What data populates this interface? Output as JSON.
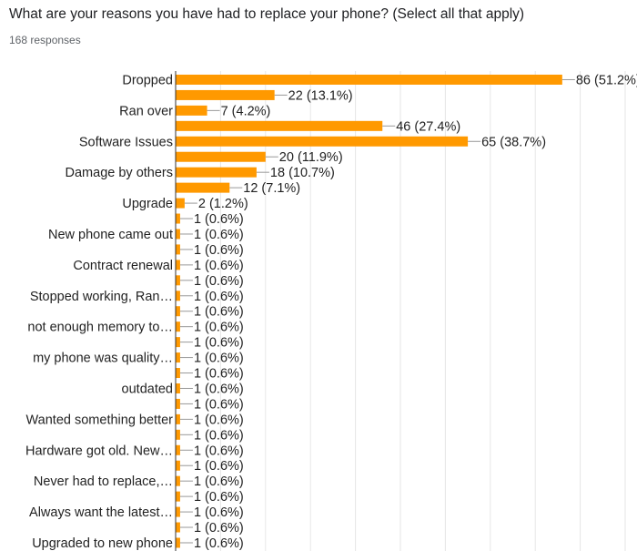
{
  "question": {
    "title": "What are your reasons you have had to replace your phone? (Select all that apply)",
    "responses": "168 responses"
  },
  "colors": {
    "bar": "#ff9900",
    "grid": "#e6e6e6",
    "axis": "#333333",
    "leader": "#999999"
  },
  "chart_data": {
    "type": "bar",
    "orientation": "horizontal",
    "grid": true,
    "categories": [
      "Dropped",
      "",
      "Ran over",
      "",
      "Software Issues",
      "",
      "Damage by others",
      "",
      "Upgrade",
      "",
      "New phone came out",
      "",
      "Contract renewal",
      "",
      "Stopped working, Ran…",
      "",
      "not enough memory to…",
      "",
      "my phone was quality…",
      "",
      "outdated",
      "",
      "Wanted something better",
      "",
      "Hardware got old. New…",
      "",
      "Never had to replace,…",
      "",
      "Always want the latest…",
      "",
      "Upgraded to new phone"
    ],
    "values": [
      86,
      22,
      7,
      46,
      65,
      20,
      18,
      12,
      2,
      1,
      1,
      1,
      1,
      1,
      1,
      1,
      1,
      1,
      1,
      1,
      1,
      1,
      1,
      1,
      1,
      1,
      1,
      1,
      1,
      1,
      1
    ],
    "labels": [
      "86 (51.2%)",
      "22 (13.1%)",
      "7 (4.2%)",
      "46 (27.4%)",
      "65 (38.7%)",
      "20 (11.9%)",
      "18 (10.7%)",
      "12 (7.1%)",
      "2 (1.2%)",
      "1 (0.6%)",
      "1 (0.6%)",
      "1 (0.6%)",
      "1 (0.6%)",
      "1 (0.6%)",
      "1 (0.6%)",
      "1 (0.6%)",
      "1 (0.6%)",
      "1 (0.6%)",
      "1 (0.6%)",
      "1 (0.6%)",
      "1 (0.6%)",
      "1 (0.6%)",
      "1 (0.6%)",
      "1 (0.6%)",
      "1 (0.6%)",
      "1 (0.6%)",
      "1 (0.6%)",
      "1 (0.6%)",
      "1 (0.6%)",
      "1 (0.6%)",
      "1 (0.6%)"
    ],
    "xlim": [
      0,
      100
    ]
  }
}
